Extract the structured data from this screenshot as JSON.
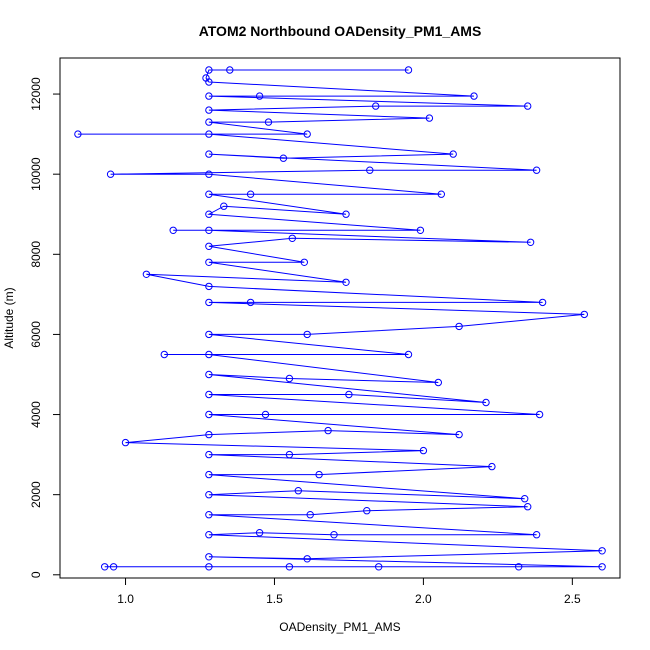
{
  "chart_data": {
    "type": "scatter",
    "title": "ATOM2 Northbound OADensity_PM1_AMS",
    "xlabel": "OADensity_PM1_AMS",
    "ylabel": "Altitude (m)",
    "xlim": [
      0.78,
      2.66
    ],
    "ylim": [
      -80,
      12900
    ],
    "x_ticks": [
      1.0,
      1.5,
      2.0,
      2.5
    ],
    "x_tick_labels": [
      "1.0",
      "1.5",
      "2.0",
      "2.5"
    ],
    "y_ticks": [
      0,
      2000,
      4000,
      6000,
      8000,
      10000,
      12000
    ],
    "y_tick_labels": [
      "0",
      "2000",
      "4000",
      "6000",
      "8000",
      "10000",
      "12000"
    ],
    "grid": false,
    "legend": "none",
    "marker": "open-circle",
    "connected": true,
    "series": [
      {
        "color": "#0000ff",
        "points": [
          [
            0.93,
            200
          ],
          [
            0.96,
            200
          ],
          [
            1.28,
            200
          ],
          [
            1.55,
            200
          ],
          [
            1.85,
            200
          ],
          [
            2.32,
            200
          ],
          [
            2.6,
            200
          ],
          [
            1.28,
            450
          ],
          [
            1.61,
            400
          ],
          [
            2.6,
            600
          ],
          [
            1.28,
            1000
          ],
          [
            1.45,
            1050
          ],
          [
            1.7,
            1000
          ],
          [
            2.38,
            1000
          ],
          [
            1.28,
            1500
          ],
          [
            1.62,
            1500
          ],
          [
            1.81,
            1600
          ],
          [
            2.35,
            1700
          ],
          [
            1.28,
            2000
          ],
          [
            1.58,
            2100
          ],
          [
            2.34,
            1900
          ],
          [
            1.28,
            2500
          ],
          [
            1.65,
            2500
          ],
          [
            2.23,
            2700
          ],
          [
            1.28,
            3000
          ],
          [
            1.55,
            3000
          ],
          [
            2.0,
            3100
          ],
          [
            1.0,
            3300
          ],
          [
            1.28,
            3500
          ],
          [
            1.68,
            3600
          ],
          [
            2.12,
            3500
          ],
          [
            1.28,
            4000
          ],
          [
            1.47,
            4000
          ],
          [
            2.39,
            4000
          ],
          [
            1.28,
            4500
          ],
          [
            1.75,
            4500
          ],
          [
            2.21,
            4300
          ],
          [
            1.28,
            5000
          ],
          [
            1.55,
            4900
          ],
          [
            2.05,
            4800
          ],
          [
            1.28,
            5500
          ],
          [
            1.13,
            5500
          ],
          [
            1.95,
            5500
          ],
          [
            1.28,
            6000
          ],
          [
            1.61,
            6000
          ],
          [
            2.12,
            6200
          ],
          [
            2.54,
            6500
          ],
          [
            1.28,
            6800
          ],
          [
            1.42,
            6800
          ],
          [
            2.4,
            6800
          ],
          [
            1.28,
            7200
          ],
          [
            1.07,
            7500
          ],
          [
            1.74,
            7300
          ],
          [
            1.28,
            7800
          ],
          [
            1.6,
            7800
          ],
          [
            1.28,
            8200
          ],
          [
            1.56,
            8400
          ],
          [
            2.36,
            8300
          ],
          [
            1.28,
            8600
          ],
          [
            1.16,
            8600
          ],
          [
            1.99,
            8600
          ],
          [
            1.28,
            9000
          ],
          [
            1.33,
            9200
          ],
          [
            1.74,
            9000
          ],
          [
            1.28,
            9500
          ],
          [
            1.42,
            9500
          ],
          [
            2.06,
            9500
          ],
          [
            1.28,
            10000
          ],
          [
            0.95,
            10000
          ],
          [
            1.82,
            10100
          ],
          [
            2.38,
            10100
          ],
          [
            1.28,
            10500
          ],
          [
            1.53,
            10400
          ],
          [
            2.1,
            10500
          ],
          [
            1.28,
            11000
          ],
          [
            0.84,
            11000
          ],
          [
            1.61,
            11000
          ],
          [
            1.28,
            11300
          ],
          [
            1.48,
            11300
          ],
          [
            2.02,
            11400
          ],
          [
            1.28,
            11600
          ],
          [
            1.84,
            11700
          ],
          [
            2.35,
            11700
          ],
          [
            1.28,
            11950
          ],
          [
            1.45,
            11950
          ],
          [
            2.17,
            11950
          ],
          [
            1.28,
            12300
          ],
          [
            1.27,
            12400
          ],
          [
            1.28,
            12600
          ],
          [
            1.35,
            12600
          ],
          [
            1.95,
            12600
          ]
        ]
      }
    ]
  }
}
